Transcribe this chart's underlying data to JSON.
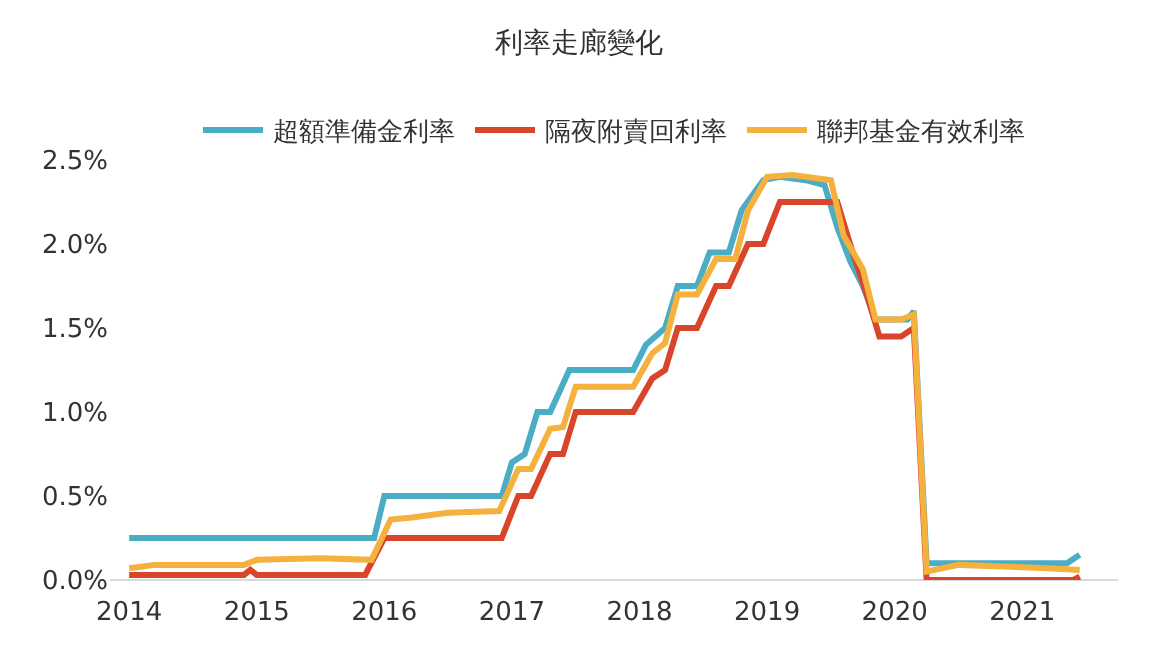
{
  "chart_data": {
    "type": "line",
    "title": "利率走廊變化",
    "xlim": [
      2013.85,
      2021.75
    ],
    "xticks": [
      2014,
      2015,
      2016,
      2017,
      2018,
      2019,
      2020,
      2021
    ],
    "ylim": [
      0,
      2.5
    ],
    "yticks": [
      {
        "value": 0,
        "label": "0.0%"
      },
      {
        "value": 0.5,
        "label": "0.5%"
      },
      {
        "value": 1,
        "label": "1.0%"
      },
      {
        "value": 1.5,
        "label": "1.5%"
      },
      {
        "value": 2,
        "label": "2.0%"
      },
      {
        "value": 2.5,
        "label": "2.5%"
      }
    ],
    "legend": "top",
    "marker": "none",
    "line_style": "solid",
    "series": [
      {
        "name": "超額準備金利率",
        "color": "#4bacc6",
        "x": [
          2014,
          2015.92,
          2016.0,
          2016.92,
          2017.0,
          2017.1,
          2017.2,
          2017.3,
          2017.45,
          2017.95,
          2018.05,
          2018.2,
          2018.3,
          2018.45,
          2018.55,
          2018.7,
          2018.8,
          2018.97,
          2019.1,
          2019.3,
          2019.45,
          2019.55,
          2019.65,
          2019.75,
          2019.85,
          2020.1,
          2020.15,
          2020.25,
          2021.35,
          2021.45
        ],
        "values": [
          0.25,
          0.25,
          0.5,
          0.5,
          0.7,
          0.75,
          1.0,
          1.0,
          1.25,
          1.25,
          1.4,
          1.5,
          1.75,
          1.75,
          1.95,
          1.95,
          2.2,
          2.38,
          2.4,
          2.38,
          2.35,
          2.1,
          1.9,
          1.75,
          1.55,
          1.55,
          1.6,
          0.1,
          0.1,
          0.15
        ]
      },
      {
        "name": "隔夜附賣回利率",
        "color": "#d9452a",
        "x": [
          2014,
          2014.9,
          2014.95,
          2015.0,
          2015.85,
          2016.0,
          2016.92,
          2017.05,
          2017.15,
          2017.3,
          2017.4,
          2017.5,
          2017.95,
          2018.1,
          2018.2,
          2018.3,
          2018.45,
          2018.6,
          2018.7,
          2018.85,
          2018.97,
          2019.1,
          2019.55,
          2019.65,
          2019.78,
          2019.88,
          2020.05,
          2020.15,
          2020.25,
          2021.4,
          2021.45
        ],
        "values": [
          0.03,
          0.03,
          0.06,
          0.03,
          0.03,
          0.25,
          0.25,
          0.5,
          0.5,
          0.75,
          0.75,
          1.0,
          1.0,
          1.2,
          1.25,
          1.5,
          1.5,
          1.75,
          1.75,
          2.0,
          2.0,
          2.25,
          2.25,
          2.0,
          1.7,
          1.45,
          1.45,
          1.5,
          0.0,
          0.0,
          0.02
        ]
      },
      {
        "name": "聯邦基金有效利率",
        "color": "#f4b13d",
        "x": [
          2014,
          2014.2,
          2014.9,
          2015.0,
          2015.5,
          2015.9,
          2016.05,
          2016.2,
          2016.5,
          2016.9,
          2017.05,
          2017.15,
          2017.3,
          2017.4,
          2017.5,
          2017.95,
          2018.1,
          2018.2,
          2018.3,
          2018.45,
          2018.6,
          2018.75,
          2018.85,
          2019.0,
          2019.2,
          2019.5,
          2019.6,
          2019.75,
          2019.85,
          2020.05,
          2020.15,
          2020.25,
          2020.5,
          2021.2,
          2021.45
        ],
        "values": [
          0.07,
          0.09,
          0.09,
          0.12,
          0.13,
          0.12,
          0.36,
          0.37,
          0.4,
          0.41,
          0.66,
          0.66,
          0.9,
          0.91,
          1.15,
          1.15,
          1.35,
          1.41,
          1.7,
          1.7,
          1.91,
          1.91,
          2.2,
          2.4,
          2.41,
          2.38,
          2.05,
          1.85,
          1.55,
          1.55,
          1.58,
          0.05,
          0.09,
          0.07,
          0.06
        ]
      }
    ]
  }
}
